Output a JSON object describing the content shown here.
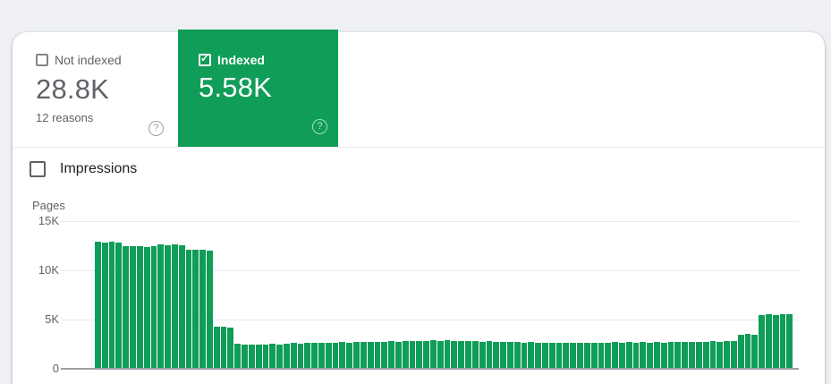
{
  "page_bg": "#eef0f4",
  "icons": {
    "help_glyph": "?",
    "check_glyph": "✓"
  },
  "cards": {
    "not_indexed": {
      "label": "Not indexed",
      "checkbox_checked": false,
      "value": "28.8K",
      "subtext": "12 reasons"
    },
    "indexed": {
      "label": "Indexed",
      "checkbox_checked": true,
      "value": "5.58K",
      "accent_color": "#0f9d58"
    }
  },
  "impressions": {
    "label": "Impressions",
    "checkbox_checked": false
  },
  "chart_data": {
    "type": "bar",
    "title": "",
    "ylabel": "Pages",
    "xlabel": "",
    "ylim": [
      0,
      15000
    ],
    "ytick_labels": [
      "15K",
      "10K",
      "5K",
      "0"
    ],
    "ytick_values": [
      15000,
      10000,
      5000,
      0
    ],
    "grid": true,
    "legend": "none",
    "bar_color": "#0f9d58",
    "values_unit": "pages",
    "values": [
      12900,
      12850,
      12900,
      12850,
      12450,
      12500,
      12450,
      12400,
      12450,
      12600,
      12550,
      12600,
      12550,
      12100,
      12050,
      12100,
      12000,
      4300,
      4250,
      4200,
      2550,
      2500,
      2450,
      2500,
      2500,
      2550,
      2500,
      2550,
      2600,
      2550,
      2600,
      2600,
      2650,
      2600,
      2650,
      2700,
      2650,
      2700,
      2700,
      2750,
      2700,
      2750,
      2800,
      2750,
      2800,
      2850,
      2800,
      2850,
      2900,
      2850,
      2900,
      2850,
      2800,
      2850,
      2800,
      2750,
      2800,
      2750,
      2700,
      2750,
      2700,
      2650,
      2700,
      2650,
      2600,
      2650,
      2600,
      2650,
      2600,
      2650,
      2600,
      2650,
      2600,
      2650,
      2700,
      2650,
      2700,
      2650,
      2700,
      2650,
      2700,
      2650,
      2700,
      2750,
      2700,
      2750,
      2700,
      2750,
      2800,
      2750,
      2800,
      2850,
      3500,
      3550,
      3500,
      5500,
      5550,
      5500,
      5550,
      5580
    ]
  }
}
